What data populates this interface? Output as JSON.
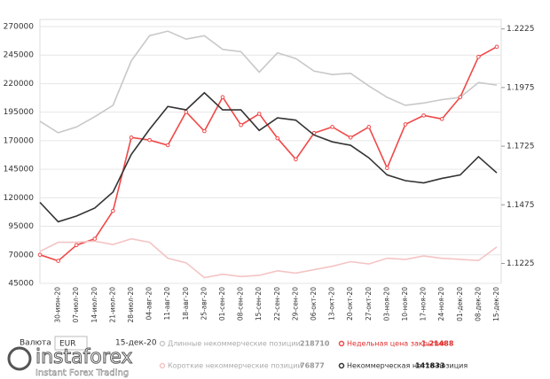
{
  "chart_data": {
    "type": "line",
    "categories": [
      null,
      "30-июн-20",
      "07-июл-20",
      "14-июл-20",
      "21-июл-20",
      "28-июл-20",
      "04-авг-20",
      "11-авг-20",
      "18-авг-20",
      "25-авг-20",
      "01-сен-20",
      "08-сен-20",
      "15-сен-20",
      "22-сен-20",
      "29-сен-20",
      "06-окт-20",
      "13-окт-20",
      "20-окт-20",
      "27-окт-20",
      "03-ноя-20",
      "10-ноя-20",
      "17-ноя-20",
      "24-ноя-20",
      "01-дек-20",
      "08-дек-20",
      "15-дек-20"
    ],
    "series": [
      {
        "name": "Длинные некоммерческие позиции",
        "color": "#c8c8c8",
        "axis": "y",
        "values": [
          187000,
          177000,
          182000,
          191000,
          201000,
          240000,
          262000,
          266000,
          259000,
          262000,
          250000,
          248000,
          230000,
          247000,
          242000,
          231000,
          228000,
          229000,
          218000,
          208000,
          201000,
          203000,
          206000,
          208000,
          221000,
          218710
        ]
      },
      {
        "name": "Недельная цена закрытия",
        "color": "#f04848",
        "axis": "y2",
        "values": [
          1.1262,
          1.1236,
          1.1303,
          1.133,
          1.1449,
          1.1762,
          1.1751,
          1.1729,
          1.1871,
          1.1789,
          1.1934,
          1.1815,
          1.1863,
          1.1759,
          1.1669,
          1.1781,
          1.1807,
          1.1762,
          1.1807,
          1.1632,
          1.1818,
          1.1856,
          1.1841,
          1.1934,
          1.2106,
          1.21488
        ]
      },
      {
        "name": "Короткие некоммерческие позиции",
        "color": "#f4c4c4",
        "axis": "y",
        "values": [
          73000,
          81000,
          81000,
          82000,
          79000,
          84000,
          81000,
          67000,
          63000,
          50000,
          53000,
          51000,
          52000,
          56000,
          54000,
          57000,
          60000,
          64000,
          62000,
          67000,
          66000,
          69000,
          67000,
          66000,
          65000,
          76877
        ]
      },
      {
        "name": "Некоммерческая нетто-позиция",
        "color": "#333333",
        "axis": "y",
        "values": [
          116000,
          99000,
          104000,
          111000,
          125000,
          158000,
          180000,
          200000,
          197000,
          212000,
          197000,
          197000,
          179000,
          190000,
          188000,
          175000,
          169000,
          166000,
          155000,
          140000,
          135000,
          133000,
          137000,
          140000,
          156000,
          141833
        ]
      }
    ],
    "ylim": [
      45000,
      270000
    ],
    "yticks": [
      45000,
      70000,
      95000,
      120000,
      145000,
      170000,
      195000,
      220000,
      245000,
      270000
    ],
    "y2lim": [
      1.114,
      1.2235
    ],
    "y2ticks": [
      1.1225,
      1.1475,
      1.1725,
      1.1975,
      1.2225
    ],
    "grid": true,
    "currency_label": "Валюта",
    "currency": "EUR",
    "date": "15-дек-20"
  },
  "brand": {
    "name": "instaforex",
    "tagline": "Instant Forex Trading"
  }
}
